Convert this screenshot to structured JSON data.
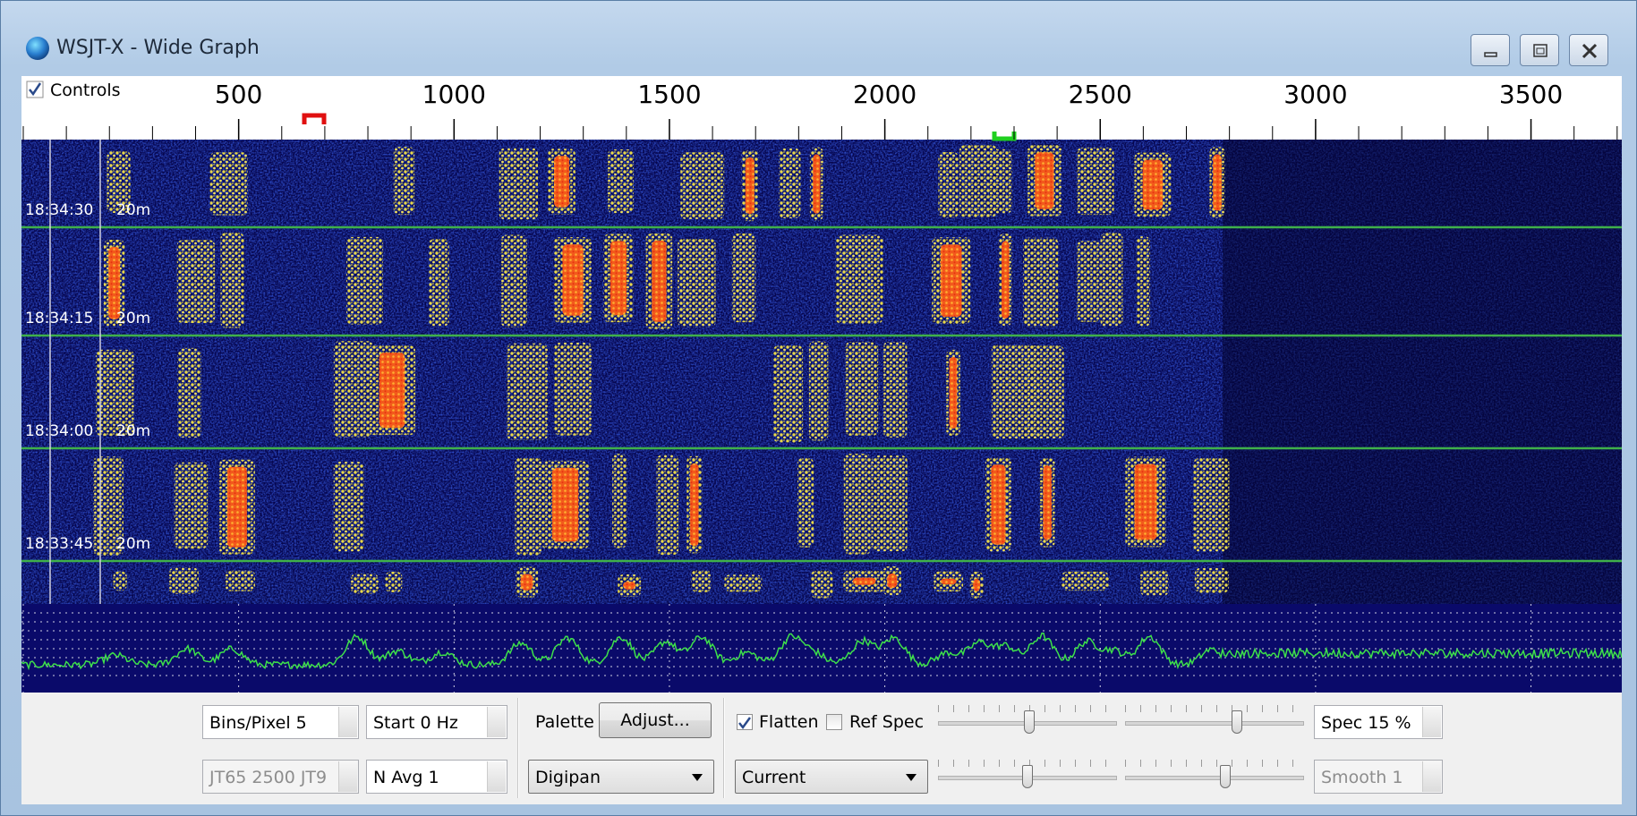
{
  "window": {
    "title": "WSJT-X - Wide Graph"
  },
  "scale": {
    "controls_label": "Controls",
    "frequencies": [
      500,
      1000,
      1500,
      2000,
      2500,
      3000,
      3500
    ]
  },
  "waterfall": {
    "rows": [
      {
        "time": "18:34:30",
        "band": "20m"
      },
      {
        "time": "18:34:15",
        "band": "20m"
      },
      {
        "time": "18:34:00",
        "band": "20m"
      },
      {
        "time": "18:33:45",
        "band": "20m"
      }
    ]
  },
  "controls": {
    "bins_pixel": "Bins/Pixel 5",
    "start": "Start 0 Hz",
    "mode": "JT65 2500 JT9",
    "n_avg": "N Avg 1",
    "palette_label": "Palette",
    "adjust": "Adjust...",
    "palette": "Digipan",
    "flatten": "Flatten",
    "ref_spec": "Ref Spec",
    "spectrum": "Current",
    "spec": "Spec 15 %",
    "smooth": "Smooth 1"
  }
}
